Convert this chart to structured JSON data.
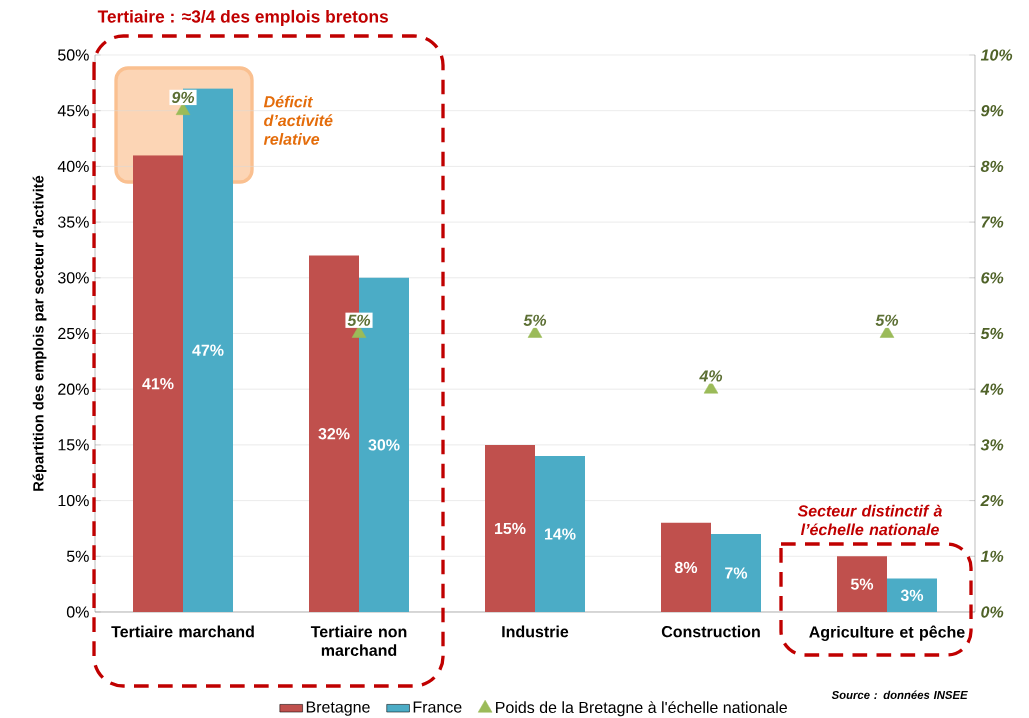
{
  "chart_data": {
    "type": "bar",
    "title": "Tertiaire : ≈3/4 des emplois bretons",
    "ylabel": "Répartition des emplois par secteur d'activité",
    "categories": [
      "Tertiaire marchand",
      "Tertiaire non marchand",
      "Industrie",
      "Construction",
      "Agriculture et pêche"
    ],
    "series": [
      {
        "name": "Bretagne",
        "color": "#c0504d",
        "values": [
          41,
          32,
          15,
          8,
          5
        ],
        "value_labels": [
          "41%",
          "32%",
          "15%",
          "8%",
          "5%"
        ]
      },
      {
        "name": "France",
        "color": "#4bacc6",
        "values": [
          47,
          30,
          14,
          7,
          3
        ],
        "value_labels": [
          "47%",
          "30%",
          "14%",
          "7%",
          "3%"
        ]
      },
      {
        "name": "Poids de la Bretagne à l'échelle nationale",
        "type": "scatter",
        "axis": "y2",
        "marker": "triangle",
        "color": "#9bbb59",
        "values": [
          9,
          5,
          5,
          4,
          5
        ],
        "value_labels": [
          "9%",
          "5%",
          "5%",
          "4%",
          "5%"
        ]
      }
    ],
    "ylim": [
      0,
      50
    ],
    "yticks": [
      {
        "value": 0,
        "label": "0%"
      },
      {
        "value": 5,
        "label": "5%"
      },
      {
        "value": 10,
        "label": "10%"
      },
      {
        "value": 15,
        "label": "15%"
      },
      {
        "value": 20,
        "label": "20%"
      },
      {
        "value": 25,
        "label": "25%"
      },
      {
        "value": 30,
        "label": "30%"
      },
      {
        "value": 35,
        "label": "35%"
      },
      {
        "value": 40,
        "label": "40%"
      },
      {
        "value": 45,
        "label": "45%"
      },
      {
        "value": 50,
        "label": "50%"
      }
    ],
    "y2lim": [
      0,
      10
    ],
    "y2ticks": [
      {
        "value": 0,
        "label": "0%"
      },
      {
        "value": 1,
        "label": "1%"
      },
      {
        "value": 2,
        "label": "2%"
      },
      {
        "value": 3,
        "label": "3%"
      },
      {
        "value": 4,
        "label": "4%"
      },
      {
        "value": 5,
        "label": "5%"
      },
      {
        "value": 6,
        "label": "6%"
      },
      {
        "value": 7,
        "label": "7%"
      },
      {
        "value": 8,
        "label": "8%"
      },
      {
        "value": 9,
        "label": "9%"
      },
      {
        "value": 10,
        "label": "10%"
      }
    ],
    "grid": "y",
    "legend": "bottom",
    "annotations": [
      "Déficit d’activité relative",
      "Secteur distinctif à l’échelle nationale",
      "Source : données INSEE"
    ]
  }
}
